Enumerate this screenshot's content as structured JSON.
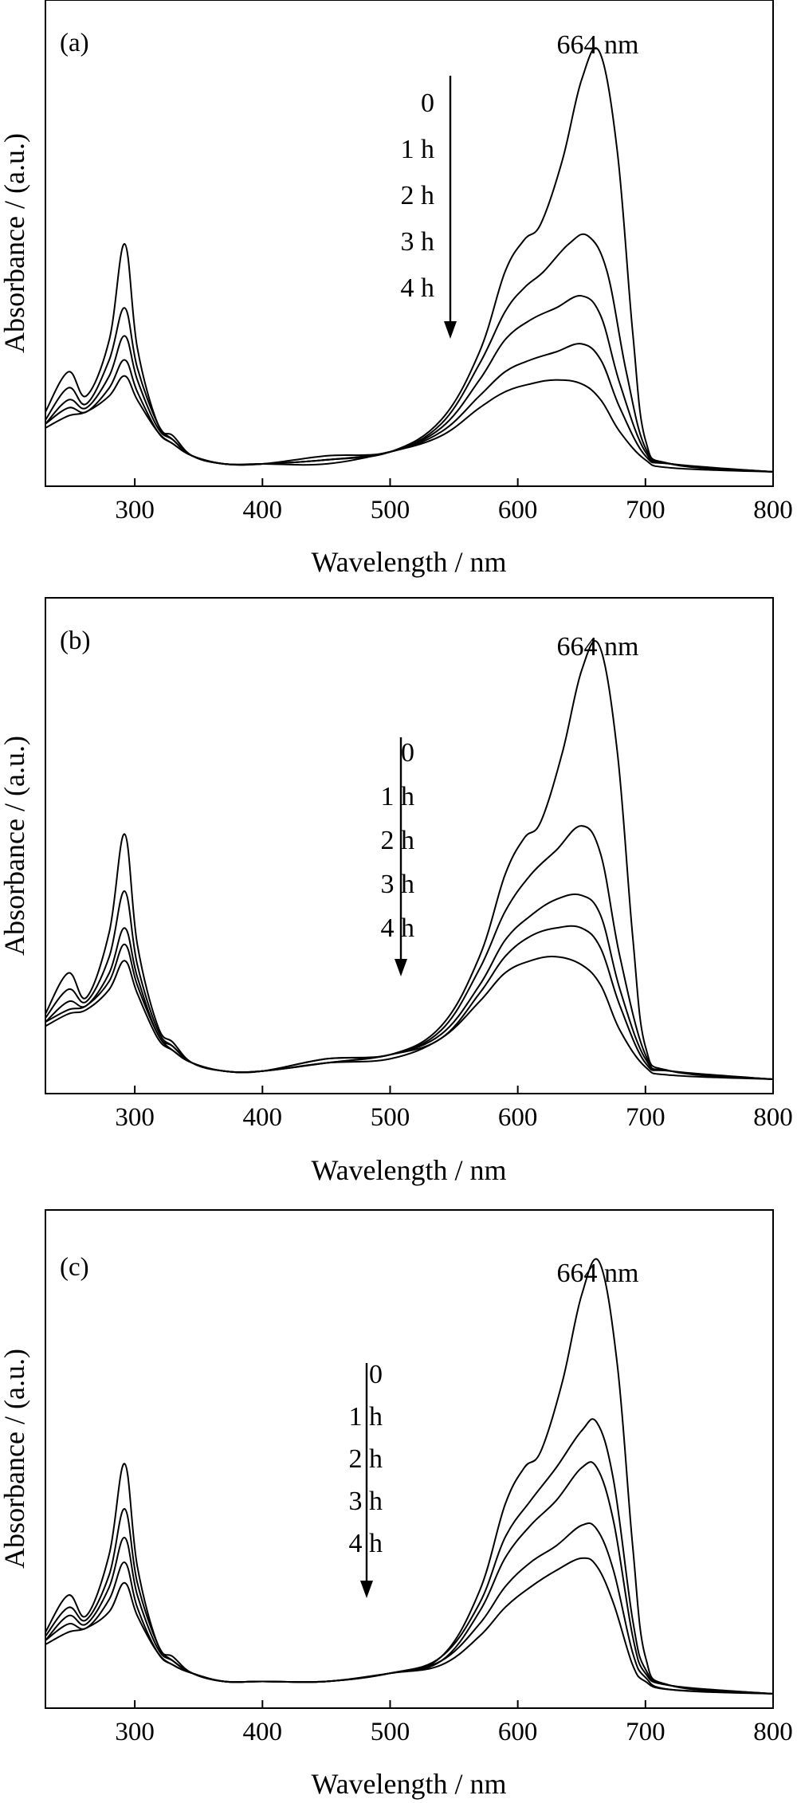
{
  "chart_data": [
    {
      "type": "line",
      "panel_label": "(a)",
      "xlabel": "Wavelength / nm",
      "ylabel": "Absorbance / (a.u.)",
      "xlim": [
        230,
        800
      ],
      "x_ticks": [
        300,
        400,
        500,
        600,
        700,
        800
      ],
      "ylim": [
        0,
        1.1
      ],
      "peak_annotation": "664 nm",
      "legend_entries": [
        "0",
        "1 h",
        "2 h",
        "3 h",
        "4 h"
      ],
      "series": [
        {
          "name": "0",
          "x": [
            230,
            248,
            262,
            280,
            292,
            302,
            318,
            330,
            345,
            370,
            400,
            450,
            500,
            540,
            570,
            590,
            605,
            618,
            635,
            650,
            664,
            678,
            690,
            700,
            720,
            800
          ],
          "y": [
            0.15,
            0.25,
            0.19,
            0.33,
            0.57,
            0.31,
            0.12,
            0.09,
            0.04,
            0.02,
            0.02,
            0.03,
            0.05,
            0.13,
            0.3,
            0.5,
            0.58,
            0.62,
            0.78,
            0.98,
            1.05,
            0.8,
            0.35,
            0.08,
            0.02,
            0.0
          ]
        },
        {
          "name": "1 h",
          "x": [
            230,
            248,
            262,
            280,
            292,
            302,
            318,
            330,
            345,
            370,
            400,
            450,
            500,
            540,
            570,
            590,
            605,
            620,
            640,
            655,
            670,
            685,
            700,
            720,
            800
          ],
          "y": [
            0.13,
            0.21,
            0.17,
            0.28,
            0.41,
            0.26,
            0.12,
            0.08,
            0.04,
            0.02,
            0.02,
            0.04,
            0.05,
            0.12,
            0.27,
            0.4,
            0.46,
            0.5,
            0.57,
            0.59,
            0.5,
            0.25,
            0.06,
            0.02,
            0.0
          ]
        },
        {
          "name": "2 h",
          "x": [
            230,
            248,
            262,
            280,
            292,
            302,
            318,
            330,
            345,
            370,
            400,
            450,
            500,
            540,
            570,
            590,
            610,
            630,
            650,
            665,
            680,
            700,
            720,
            800
          ],
          "y": [
            0.12,
            0.18,
            0.16,
            0.24,
            0.34,
            0.23,
            0.11,
            0.08,
            0.04,
            0.02,
            0.02,
            0.03,
            0.05,
            0.11,
            0.23,
            0.33,
            0.38,
            0.41,
            0.44,
            0.39,
            0.22,
            0.05,
            0.02,
            0.0
          ]
        },
        {
          "name": "3 h",
          "x": [
            230,
            248,
            262,
            280,
            292,
            302,
            318,
            330,
            345,
            370,
            400,
            450,
            500,
            540,
            570,
            590,
            610,
            630,
            650,
            665,
            680,
            700,
            720,
            800
          ],
          "y": [
            0.12,
            0.16,
            0.15,
            0.21,
            0.28,
            0.2,
            0.1,
            0.07,
            0.04,
            0.02,
            0.02,
            0.03,
            0.05,
            0.1,
            0.19,
            0.25,
            0.28,
            0.3,
            0.32,
            0.28,
            0.16,
            0.04,
            0.02,
            0.0
          ]
        },
        {
          "name": "4 h",
          "x": [
            230,
            248,
            262,
            280,
            292,
            302,
            318,
            330,
            345,
            370,
            400,
            450,
            500,
            540,
            570,
            590,
            610,
            630,
            650,
            665,
            680,
            700,
            720,
            800
          ],
          "y": [
            0.11,
            0.14,
            0.15,
            0.19,
            0.24,
            0.18,
            0.1,
            0.07,
            0.04,
            0.02,
            0.02,
            0.02,
            0.05,
            0.09,
            0.16,
            0.2,
            0.22,
            0.23,
            0.22,
            0.18,
            0.1,
            0.03,
            0.01,
            0.0
          ]
        }
      ]
    },
    {
      "type": "line",
      "panel_label": "(b)",
      "xlabel": "Wavelength / nm",
      "ylabel": "Absorbance / (a.u.)",
      "xlim": [
        230,
        800
      ],
      "x_ticks": [
        300,
        400,
        500,
        600,
        700,
        800
      ],
      "ylim": [
        0,
        1.1
      ],
      "peak_annotation": "664 nm",
      "legend_entries": [
        "0",
        "1 h",
        "2 h",
        "3 h",
        "4 h"
      ],
      "series": [
        {
          "name": "0",
          "x": [
            230,
            248,
            262,
            280,
            292,
            302,
            318,
            330,
            345,
            370,
            400,
            450,
            500,
            540,
            570,
            590,
            605,
            618,
            635,
            650,
            664,
            678,
            690,
            700,
            720,
            800
          ],
          "y": [
            0.16,
            0.26,
            0.2,
            0.36,
            0.6,
            0.33,
            0.13,
            0.09,
            0.04,
            0.02,
            0.02,
            0.05,
            0.06,
            0.13,
            0.3,
            0.5,
            0.59,
            0.63,
            0.8,
            1.0,
            1.06,
            0.8,
            0.35,
            0.08,
            0.02,
            0.0
          ]
        },
        {
          "name": "1 h",
          "x": [
            230,
            248,
            262,
            280,
            292,
            302,
            318,
            330,
            345,
            370,
            400,
            450,
            500,
            540,
            570,
            590,
            610,
            630,
            650,
            665,
            680,
            700,
            720,
            800
          ],
          "y": [
            0.15,
            0.22,
            0.19,
            0.3,
            0.46,
            0.28,
            0.12,
            0.08,
            0.04,
            0.02,
            0.02,
            0.05,
            0.06,
            0.12,
            0.27,
            0.41,
            0.5,
            0.56,
            0.62,
            0.55,
            0.3,
            0.06,
            0.02,
            0.0
          ]
        },
        {
          "name": "2 h",
          "x": [
            230,
            248,
            262,
            280,
            292,
            302,
            318,
            330,
            345,
            370,
            400,
            450,
            500,
            540,
            570,
            590,
            610,
            630,
            650,
            665,
            680,
            700,
            720,
            800
          ],
          "y": [
            0.14,
            0.19,
            0.18,
            0.26,
            0.37,
            0.25,
            0.11,
            0.08,
            0.04,
            0.02,
            0.02,
            0.04,
            0.06,
            0.11,
            0.23,
            0.34,
            0.4,
            0.44,
            0.45,
            0.4,
            0.22,
            0.05,
            0.02,
            0.0
          ]
        },
        {
          "name": "3 h",
          "x": [
            230,
            248,
            262,
            280,
            292,
            302,
            318,
            330,
            345,
            370,
            400,
            450,
            500,
            540,
            570,
            590,
            610,
            630,
            650,
            665,
            680,
            700,
            720,
            800
          ],
          "y": [
            0.14,
            0.17,
            0.18,
            0.24,
            0.33,
            0.23,
            0.11,
            0.07,
            0.04,
            0.02,
            0.02,
            0.04,
            0.06,
            0.1,
            0.21,
            0.3,
            0.35,
            0.37,
            0.37,
            0.32,
            0.18,
            0.04,
            0.02,
            0.0
          ]
        },
        {
          "name": "4 h",
          "x": [
            230,
            248,
            262,
            280,
            292,
            302,
            318,
            330,
            345,
            370,
            400,
            450,
            500,
            540,
            570,
            590,
            610,
            630,
            650,
            665,
            680,
            700,
            720,
            800
          ],
          "y": [
            0.13,
            0.16,
            0.17,
            0.22,
            0.29,
            0.21,
            0.1,
            0.07,
            0.04,
            0.02,
            0.02,
            0.04,
            0.05,
            0.1,
            0.19,
            0.26,
            0.29,
            0.3,
            0.28,
            0.23,
            0.12,
            0.03,
            0.01,
            0.0
          ]
        }
      ]
    },
    {
      "type": "line",
      "panel_label": "(c)",
      "xlabel": "Wavelength / nm",
      "ylabel": "Absorbance / (a.u.)",
      "xlim": [
        230,
        800
      ],
      "x_ticks": [
        300,
        400,
        500,
        600,
        700,
        800
      ],
      "ylim": [
        0,
        1.1
      ],
      "peak_annotation": "664 nm",
      "legend_entries": [
        "0",
        "1 h",
        "2 h",
        "3 h",
        "4 h"
      ],
      "series": [
        {
          "name": "0",
          "x": [
            230,
            248,
            262,
            280,
            292,
            302,
            318,
            330,
            345,
            370,
            400,
            450,
            500,
            540,
            570,
            590,
            605,
            618,
            635,
            650,
            664,
            678,
            690,
            700,
            720,
            800
          ],
          "y": [
            0.15,
            0.24,
            0.19,
            0.34,
            0.56,
            0.31,
            0.12,
            0.09,
            0.05,
            0.03,
            0.03,
            0.03,
            0.05,
            0.09,
            0.25,
            0.46,
            0.55,
            0.59,
            0.76,
            0.97,
            1.05,
            0.8,
            0.36,
            0.09,
            0.02,
            0.0
          ]
        },
        {
          "name": "1 h",
          "x": [
            230,
            248,
            262,
            280,
            292,
            302,
            318,
            330,
            345,
            370,
            400,
            450,
            500,
            540,
            570,
            590,
            610,
            630,
            650,
            662,
            675,
            690,
            700,
            720,
            800
          ],
          "y": [
            0.14,
            0.21,
            0.18,
            0.29,
            0.45,
            0.27,
            0.12,
            0.08,
            0.05,
            0.03,
            0.03,
            0.03,
            0.05,
            0.09,
            0.22,
            0.38,
            0.47,
            0.55,
            0.64,
            0.66,
            0.52,
            0.18,
            0.06,
            0.02,
            0.0
          ]
        },
        {
          "name": "2 h",
          "x": [
            230,
            248,
            262,
            280,
            292,
            302,
            318,
            330,
            345,
            370,
            400,
            450,
            500,
            540,
            570,
            590,
            610,
            630,
            650,
            662,
            675,
            690,
            700,
            720,
            800
          ],
          "y": [
            0.13,
            0.19,
            0.17,
            0.26,
            0.38,
            0.24,
            0.11,
            0.08,
            0.05,
            0.03,
            0.03,
            0.03,
            0.05,
            0.08,
            0.2,
            0.33,
            0.41,
            0.47,
            0.55,
            0.55,
            0.42,
            0.14,
            0.05,
            0.02,
            0.0
          ]
        },
        {
          "name": "3 h",
          "x": [
            230,
            248,
            262,
            280,
            292,
            302,
            318,
            330,
            345,
            370,
            400,
            450,
            500,
            540,
            570,
            590,
            610,
            630,
            650,
            662,
            675,
            690,
            700,
            720,
            800
          ],
          "y": [
            0.13,
            0.17,
            0.16,
            0.23,
            0.32,
            0.21,
            0.1,
            0.07,
            0.05,
            0.03,
            0.03,
            0.03,
            0.05,
            0.08,
            0.17,
            0.26,
            0.32,
            0.36,
            0.41,
            0.4,
            0.3,
            0.1,
            0.04,
            0.01,
            0.0
          ]
        },
        {
          "name": "4 h",
          "x": [
            230,
            248,
            262,
            280,
            292,
            302,
            318,
            330,
            345,
            370,
            400,
            450,
            500,
            540,
            570,
            590,
            610,
            630,
            650,
            662,
            675,
            690,
            700,
            720,
            800
          ],
          "y": [
            0.12,
            0.15,
            0.16,
            0.2,
            0.27,
            0.19,
            0.1,
            0.07,
            0.05,
            0.03,
            0.03,
            0.03,
            0.05,
            0.07,
            0.14,
            0.21,
            0.26,
            0.3,
            0.33,
            0.31,
            0.22,
            0.07,
            0.03,
            0.01,
            0.0
          ]
        }
      ]
    }
  ]
}
